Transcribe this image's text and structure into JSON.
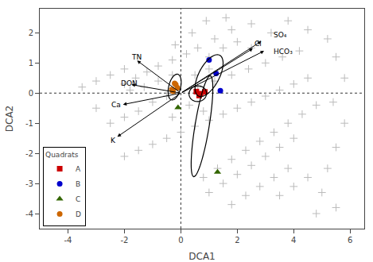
{
  "chart_data": {
    "type": "scatter",
    "xlabel": "DCA1",
    "ylabel": "DCA2",
    "xlim": [
      -5,
      6.5
    ],
    "ylim": [
      -4.5,
      2.8
    ],
    "xticks": [
      -4,
      -2,
      0,
      2,
      4,
      6
    ],
    "yticks": [
      -4,
      -3,
      -2,
      -1,
      0,
      1,
      2
    ],
    "grid": false,
    "legend": "lower left",
    "legend_title": "Quadrats",
    "background": {
      "color": "#bbbbbb",
      "marker": "cross",
      "points": [
        [
          3.8,
          2.4
        ],
        [
          4.5,
          2.1
        ],
        [
          5.2,
          1.8
        ],
        [
          3.2,
          2.0
        ],
        [
          2.5,
          2.3
        ],
        [
          1.8,
          2.1
        ],
        [
          1.2,
          1.8
        ],
        [
          0.6,
          1.5
        ],
        [
          0.2,
          1.3
        ],
        [
          -0.3,
          1.1
        ],
        [
          -0.8,
          0.9
        ],
        [
          -1.2,
          0.7
        ],
        [
          -1.6,
          0.5
        ],
        [
          -2.0,
          0.3
        ],
        [
          4.2,
          1.4
        ],
        [
          3.6,
          1.2
        ],
        [
          3.0,
          1.0
        ],
        [
          2.4,
          0.8
        ],
        [
          1.8,
          0.6
        ],
        [
          1.2,
          0.4
        ],
        [
          0.6,
          0.2
        ],
        [
          -0.5,
          -0.1
        ],
        [
          -1.0,
          -0.3
        ],
        [
          -1.5,
          -0.6
        ],
        [
          -2.0,
          -0.8
        ],
        [
          -2.5,
          -1.0
        ],
        [
          -3.0,
          -0.5
        ],
        [
          4.5,
          0.5
        ],
        [
          4.0,
          0.3
        ],
        [
          3.5,
          0.1
        ],
        [
          3.0,
          -0.1
        ],
        [
          2.5,
          -0.3
        ],
        [
          2.0,
          -0.5
        ],
        [
          1.5,
          -0.7
        ],
        [
          1.0,
          -0.9
        ],
        [
          0.5,
          -1.1
        ],
        [
          0.0,
          -1.3
        ],
        [
          -0.5,
          -1.5
        ],
        [
          -1.0,
          -1.7
        ],
        [
          -1.5,
          -1.9
        ],
        [
          -2.0,
          -2.1
        ],
        [
          4.8,
          -0.4
        ],
        [
          4.3,
          -0.7
        ],
        [
          3.8,
          -1.0
        ],
        [
          3.3,
          -1.3
        ],
        [
          2.8,
          -1.6
        ],
        [
          2.3,
          -1.9
        ],
        [
          1.8,
          -2.2
        ],
        [
          1.3,
          -2.5
        ],
        [
          0.8,
          -2.8
        ],
        [
          4.0,
          -1.5
        ],
        [
          3.5,
          -1.8
        ],
        [
          3.0,
          -2.1
        ],
        [
          2.5,
          -2.4
        ],
        [
          2.0,
          -2.7
        ],
        [
          1.5,
          -3.0
        ],
        [
          1.0,
          -3.3
        ],
        [
          3.8,
          -2.5
        ],
        [
          3.3,
          -2.8
        ],
        [
          2.8,
          -3.1
        ],
        [
          2.3,
          -3.4
        ],
        [
          1.8,
          -3.7
        ],
        [
          4.5,
          -2.8
        ],
        [
          4.0,
          -3.1
        ],
        [
          3.5,
          -3.4
        ],
        [
          -0.8,
          0.4
        ],
        [
          -1.3,
          0.2
        ],
        [
          -0.3,
          0.6
        ],
        [
          -1.8,
          0.1
        ],
        [
          0.3,
          -0.4
        ],
        [
          0.8,
          -0.6
        ],
        [
          -0.3,
          -0.8
        ],
        [
          1.5,
          1.5
        ],
        [
          2.0,
          1.7
        ],
        [
          1.0,
          1.2
        ],
        [
          2.5,
          1.5
        ],
        [
          -2.5,
          0.6
        ],
        [
          -3.0,
          0.4
        ],
        [
          -2.0,
          0.8
        ],
        [
          -3.5,
          0.2
        ],
        [
          0.5,
          0.6
        ],
        [
          1.0,
          0.8
        ],
        [
          5.5,
          1.2
        ],
        [
          5.8,
          0.5
        ],
        [
          5.4,
          -0.3
        ],
        [
          5.8,
          -1.0
        ],
        [
          5.5,
          -1.8
        ],
        [
          5.2,
          -2.5
        ],
        [
          5.0,
          -3.3
        ],
        [
          5.5,
          -3.8
        ],
        [
          4.8,
          -4.0
        ],
        [
          -0.2,
          1.6
        ],
        [
          0.4,
          2.0
        ],
        [
          0.9,
          2.4
        ],
        [
          1.6,
          2.5
        ]
      ]
    },
    "series": [
      {
        "name": "A",
        "color": "#cc0000",
        "marker": "square",
        "points": [
          [
            0.55,
            0.05
          ],
          [
            0.7,
            -0.02
          ],
          [
            0.85,
            0.04
          ],
          [
            0.65,
            -0.08
          ]
        ]
      },
      {
        "name": "B",
        "color": "#0000cc",
        "marker": "circle",
        "points": [
          [
            1.0,
            1.1
          ],
          [
            1.25,
            0.65
          ],
          [
            1.4,
            0.08
          ]
        ]
      },
      {
        "name": "C",
        "color": "#336600",
        "marker": "triangle-up",
        "points": [
          [
            -0.1,
            -0.48
          ],
          [
            1.3,
            -2.62
          ]
        ]
      },
      {
        "name": "D",
        "color": "#cc6600",
        "marker": "circle",
        "points": [
          [
            -0.22,
            0.32
          ],
          [
            -0.32,
            0.12
          ],
          [
            -0.12,
            0.18
          ],
          [
            -0.28,
            0.06
          ],
          [
            -0.18,
            0.28
          ]
        ]
      }
    ],
    "hlines": [
      0
    ],
    "vlines": [
      0
    ],
    "arrow_color": "#000000",
    "arrows": [
      {
        "label": "TN",
        "x0": 0,
        "y0": 0,
        "x1": -1.55,
        "y1": 1.08,
        "lx": -1.82,
        "ly": 1.18
      },
      {
        "label": "DON",
        "x0": 0,
        "y0": 0,
        "x1": -1.75,
        "y1": 0.28,
        "lx": -2.18,
        "ly": 0.33
      },
      {
        "label": "Ca",
        "x0": 0,
        "y0": 0,
        "x1": -2.05,
        "y1": -0.38,
        "lx": -2.52,
        "ly": -0.4
      },
      {
        "label": "K",
        "x0": 0,
        "y0": 0,
        "x1": -2.25,
        "y1": -1.45,
        "lx": -2.55,
        "ly": -1.58
      },
      {
        "label": "Cl",
        "x0": 0,
        "y0": 0,
        "x1": 2.55,
        "y1": 1.48,
        "lx": 2.55,
        "ly": 1.65
      },
      {
        "label": "SO₄",
        "x0": 0,
        "y0": 0,
        "x1": 2.85,
        "y1": 1.72,
        "lx": 3.22,
        "ly": 1.93
      },
      {
        "label": "HCO₃",
        "x0": 0,
        "y0": 0,
        "x1": 2.95,
        "y1": 1.4,
        "lx": 3.22,
        "ly": 1.38
      }
    ],
    "ellipse_color": "#000000",
    "ellipses": [
      {
        "cx": -0.22,
        "cy": 0.2,
        "width": 0.42,
        "height": 0.88,
        "angle": -15
      },
      {
        "cx": 1.0,
        "cy": 0.58,
        "width": 0.72,
        "height": 1.55,
        "angle": -30
      },
      {
        "cx": 0.75,
        "cy": -1.1,
        "width": 0.5,
        "height": 3.4,
        "angle": -10
      },
      {
        "cx": 0.6,
        "cy": -0.02,
        "width": 0.62,
        "height": 0.52,
        "angle": 5
      }
    ]
  }
}
